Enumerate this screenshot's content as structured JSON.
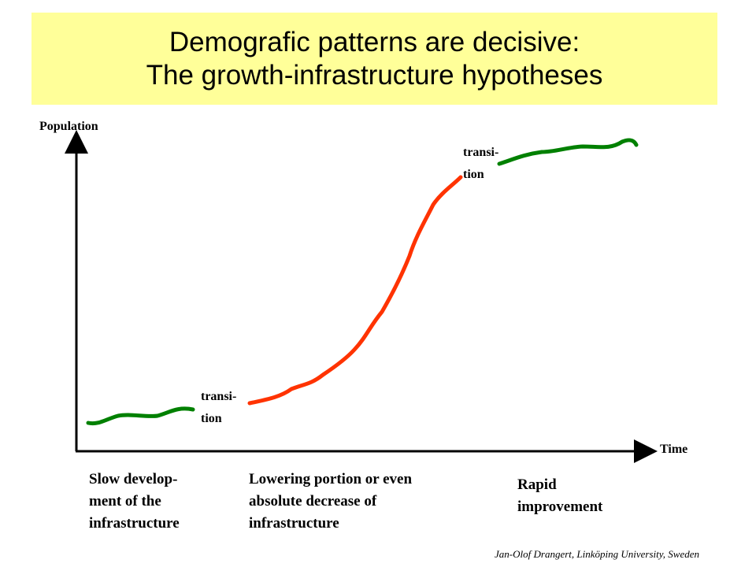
{
  "title": {
    "line1": "Demografic patterns are decisive:",
    "line2": "The growth-infrastructure hypotheses",
    "background": "#ffff99"
  },
  "axes": {
    "y_label": "Population",
    "x_label": "Time"
  },
  "transitions": [
    {
      "line1": "transi-",
      "line2": "tion"
    },
    {
      "line1": "transi-",
      "line2": "tion"
    }
  ],
  "curve_segments": [
    {
      "phase": "slow",
      "color": "#008000"
    },
    {
      "phase": "growth",
      "color": "#ff3300"
    },
    {
      "phase": "plateau",
      "color": "#008000"
    }
  ],
  "phases": [
    {
      "line1": "Slow develop-",
      "line2": "ment of the",
      "line3": "infrastructure"
    },
    {
      "line1": "Lowering portion or even",
      "line2": "absolute decrease of",
      "line3": "infrastructure"
    },
    {
      "line1": "Rapid",
      "line2": "improvement"
    }
  ],
  "footer": "Jan-Olof Drangert, Linköping University, Sweden"
}
